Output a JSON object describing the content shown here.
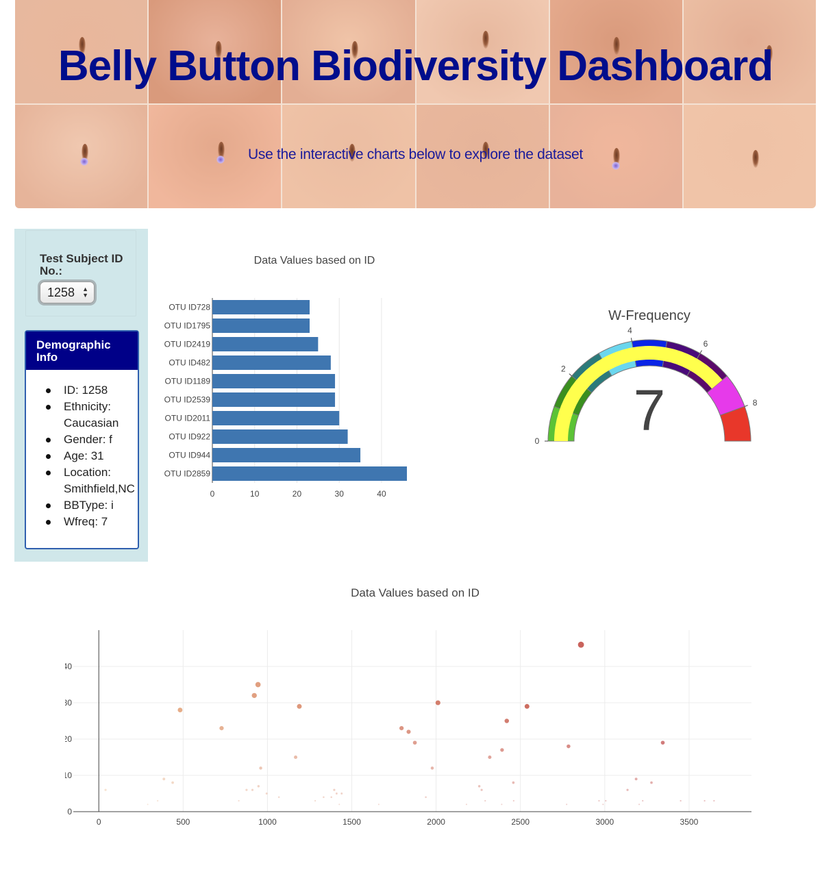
{
  "header": {
    "title": "Belly Button Biodiversity Dashboard",
    "subtitle": "Use the interactive charts below to explore the dataset"
  },
  "selector": {
    "label": "Test Subject ID No.:",
    "selected": "1258"
  },
  "demographics": {
    "title": "Demographic Info",
    "items": [
      "ID: 1258",
      "Ethnicity: Caucasian",
      "Gender: f",
      "Age: 31",
      "Location: Smithfield,NC",
      "BBType: i",
      "Wfreq: 7"
    ]
  },
  "colors": {
    "header_title": "#000d8c",
    "panel_header": "#000088",
    "left_column_bg": "#d0e7ea",
    "bar": "#3f76b0"
  },
  "chart_data": [
    {
      "type": "bar",
      "orientation": "horizontal",
      "title": "Data Values based on ID",
      "categories": [
        "OTU ID728",
        "OTU ID1795",
        "OTU ID2419",
        "OTU ID482",
        "OTU ID1189",
        "OTU ID2539",
        "OTU ID2011",
        "OTU ID922",
        "OTU ID944",
        "OTU ID2859"
      ],
      "values": [
        23,
        23,
        25,
        28,
        29,
        29,
        30,
        32,
        35,
        46
      ],
      "xlim": [
        0,
        46
      ],
      "xticks": [
        0,
        10,
        20,
        30,
        40
      ],
      "grid": true
    },
    {
      "type": "gauge",
      "title": "W-Frequency",
      "value": 7,
      "range": [
        0,
        9
      ],
      "tick_labels": [
        "0",
        "2",
        "4",
        "6",
        "8"
      ],
      "ticks": [
        0,
        2,
        4,
        6,
        8
      ],
      "bands": [
        {
          "from": 0,
          "to": 1,
          "color": "#5bc236"
        },
        {
          "from": 1,
          "to": 2,
          "color": "#3a8f1f"
        },
        {
          "from": 2,
          "to": 3,
          "color": "#2b7a7a"
        },
        {
          "from": 3,
          "to": 4,
          "color": "#6ad6ee"
        },
        {
          "from": 4,
          "to": 5,
          "color": "#0a24e6"
        },
        {
          "from": 5,
          "to": 6,
          "color": "#4a0a7a"
        },
        {
          "from": 6,
          "to": 7,
          "color": "#5a0a6a"
        },
        {
          "from": 7,
          "to": 8,
          "color": "#e63aea"
        },
        {
          "from": 8,
          "to": 9,
          "color": "#e8372a"
        }
      ],
      "value_bar_color": "#ffff4d"
    },
    {
      "type": "scatter",
      "title": "Data Values based on ID",
      "xlim": [
        -200,
        3870
      ],
      "ylim": [
        0,
        50
      ],
      "xticks": [
        0,
        500,
        1000,
        1500,
        2000,
        2500,
        3000,
        3500
      ],
      "yticks": [
        0,
        10,
        20,
        30,
        40
      ],
      "grid": true,
      "x": [
        2859,
        944,
        922,
        482,
        1189,
        2011,
        2539,
        728,
        1795,
        1837,
        2419,
        1874,
        3344,
        2785,
        2391,
        2318,
        1167,
        960,
        1977,
        3186,
        3277,
        386,
        438,
        3135,
        2270,
        2458,
        947,
        876,
        911,
        40,
        1396,
        1410,
        1939,
        1333,
        1379,
        2291,
        3006,
        3450,
        3592,
        2966,
        3225,
        3648,
        349,
        1068,
        995,
        1426,
        1283,
        2256,
        2774,
        2460,
        1440,
        2389,
        3204,
        2180,
        290,
        830,
        1660,
        2990
      ],
      "y": [
        46,
        35,
        32,
        28,
        29,
        30,
        29,
        23,
        23,
        22,
        25,
        19,
        19,
        18,
        17,
        15,
        15,
        12,
        12,
        9,
        8,
        9,
        8,
        6,
        6,
        8,
        7,
        6,
        6,
        6,
        6,
        5,
        4,
        4,
        4,
        3,
        3,
        3,
        3,
        3,
        3,
        3,
        3,
        4,
        5,
        2,
        3,
        7,
        2,
        3,
        5,
        2,
        2,
        2,
        2,
        3,
        2,
        2
      ]
    }
  ]
}
